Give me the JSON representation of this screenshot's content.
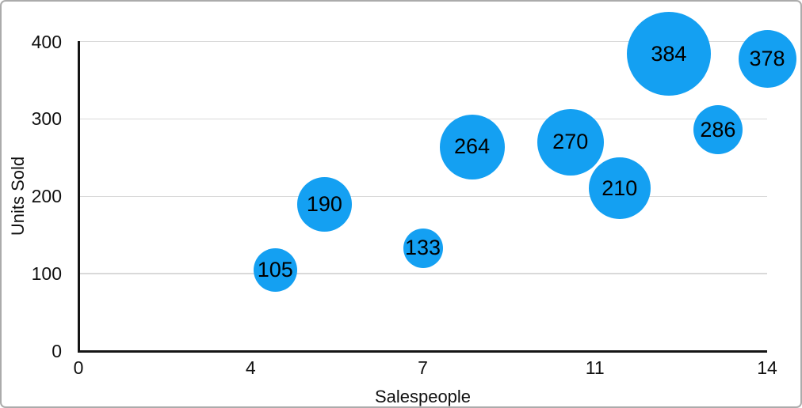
{
  "chart_data": {
    "type": "scatter",
    "variant": "bubble",
    "title": "",
    "xlabel": "Salespeople",
    "ylabel": "Units Sold",
    "xlim": [
      0,
      14
    ],
    "ylim": [
      0,
      400
    ],
    "grid": "horizontal-only",
    "legend": "none",
    "x_ticks": [
      {
        "label": "0",
        "pos": 0
      },
      {
        "label": "4",
        "pos": 0.25
      },
      {
        "label": "7",
        "pos": 0.5
      },
      {
        "label": "11",
        "pos": 0.75
      },
      {
        "label": "14",
        "pos": 1
      }
    ],
    "y_ticks": [
      {
        "label": "0",
        "value": 0
      },
      {
        "label": "100",
        "value": 100
      },
      {
        "label": "200",
        "value": 200
      },
      {
        "label": "300",
        "value": 300
      },
      {
        "label": "400",
        "value": 400
      }
    ],
    "points": [
      {
        "x": 4,
        "y": 105,
        "label": "105",
        "radius_px": 27.5
      },
      {
        "x": 5,
        "y": 190,
        "label": "190",
        "radius_px": 34.5
      },
      {
        "x": 7,
        "y": 133,
        "label": "133",
        "radius_px": 25
      },
      {
        "x": 8,
        "y": 264,
        "label": "264",
        "radius_px": 41
      },
      {
        "x": 10,
        "y": 270,
        "label": "270",
        "radius_px": 42
      },
      {
        "x": 11,
        "y": 210,
        "label": "210",
        "radius_px": 39
      },
      {
        "x": 12,
        "y": 384,
        "label": "384",
        "radius_px": 53
      },
      {
        "x": 13,
        "y": 286,
        "label": "286",
        "radius_px": 31
      },
      {
        "x": 14,
        "y": 378,
        "label": "378",
        "radius_px": 36.5
      }
    ],
    "colors": {
      "bubble_fill": "#14A0F2",
      "bubble_label": "#000000",
      "grid_line": "#D9D9D9",
      "axis_line": "#151515",
      "tick_label": "#111111",
      "frame_border": "#ABABAB",
      "background": "#FFFFFF"
    }
  }
}
